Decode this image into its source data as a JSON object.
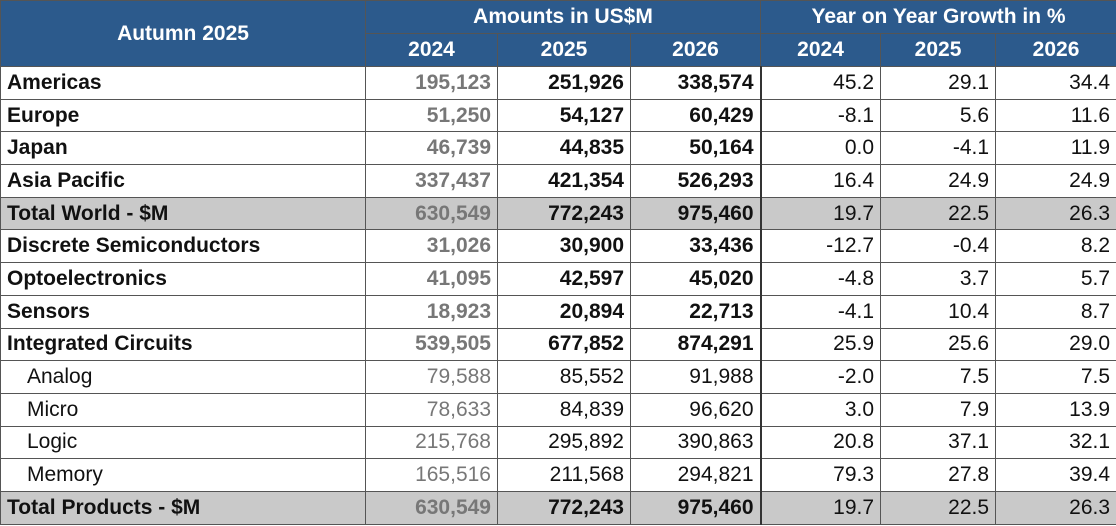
{
  "header": {
    "title": "Autumn 2025",
    "amounts": "Amounts in US$M",
    "growth": "Year on Year Growth in %",
    "years": [
      "2024",
      "2025",
      "2026",
      "2024",
      "2025",
      "2026"
    ]
  },
  "rows": [
    {
      "label": "Americas",
      "cells": [
        "195,123",
        "251,926",
        "338,574",
        "45.2",
        "29.1",
        "34.4"
      ]
    },
    {
      "label": "Europe",
      "cells": [
        "51,250",
        "54,127",
        "60,429",
        "-8.1",
        "5.6",
        "11.6"
      ]
    },
    {
      "label": "Japan",
      "cells": [
        "46,739",
        "44,835",
        "50,164",
        "0.0",
        "-4.1",
        "11.9"
      ]
    },
    {
      "label": "Asia Pacific",
      "cells": [
        "337,437",
        "421,354",
        "526,293",
        "16.4",
        "24.9",
        "24.9"
      ]
    },
    {
      "label": "Total World - $M",
      "cells": [
        "630,549",
        "772,243",
        "975,460",
        "19.7",
        "22.5",
        "26.3"
      ]
    },
    {
      "label": "Discrete Semiconductors",
      "cells": [
        "31,026",
        "30,900",
        "33,436",
        "-12.7",
        "-0.4",
        "8.2"
      ]
    },
    {
      "label": "Optoelectronics",
      "cells": [
        "41,095",
        "42,597",
        "45,020",
        "-4.8",
        "3.7",
        "5.7"
      ]
    },
    {
      "label": "Sensors",
      "cells": [
        "18,923",
        "20,894",
        "22,713",
        "-4.1",
        "10.4",
        "8.7"
      ]
    },
    {
      "label": "Integrated Circuits",
      "cells": [
        "539,505",
        "677,852",
        "874,291",
        "25.9",
        "25.6",
        "29.0"
      ]
    },
    {
      "label": "Analog",
      "cells": [
        "79,588",
        "85,552",
        "91,988",
        "-2.0",
        "7.5",
        "7.5"
      ]
    },
    {
      "label": "Micro",
      "cells": [
        "78,633",
        "84,839",
        "96,620",
        "3.0",
        "7.9",
        "13.9"
      ]
    },
    {
      "label": "Logic",
      "cells": [
        "215,768",
        "295,892",
        "390,863",
        "20.8",
        "37.1",
        "32.1"
      ]
    },
    {
      "label": "Memory",
      "cells": [
        "165,516",
        "211,568",
        "294,821",
        "79.3",
        "27.8",
        "39.4"
      ]
    },
    {
      "label": "Total Products - $M",
      "cells": [
        "630,549",
        "772,243",
        "975,460",
        "19.7",
        "22.5",
        "26.3"
      ]
    }
  ]
}
